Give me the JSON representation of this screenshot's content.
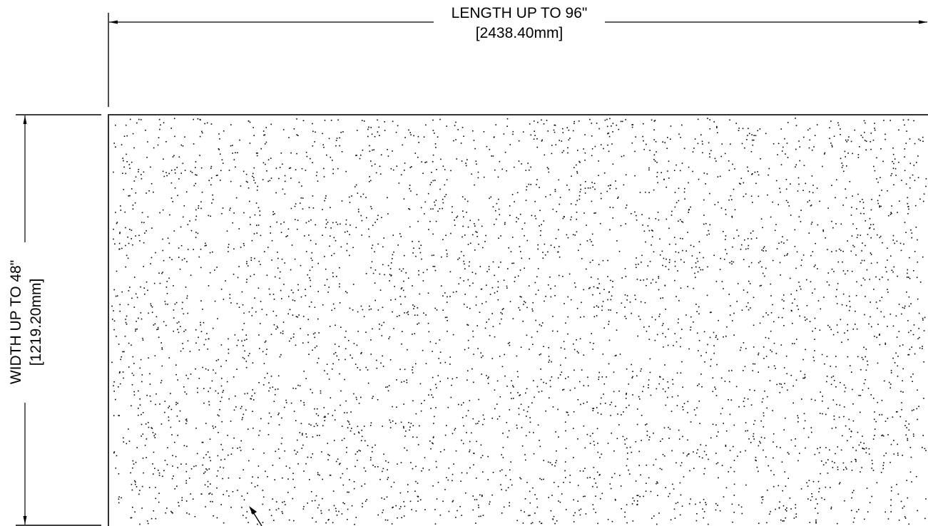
{
  "dimensions": {
    "length": {
      "label": "LENGTH UP TO 96\"",
      "metric": "[2438.40mm]"
    },
    "width": {
      "label": "WIDTH UP TO 48\"",
      "metric": "[1219.20mm]"
    }
  },
  "style": {
    "line_color": "#000000",
    "background": "#ffffff"
  }
}
